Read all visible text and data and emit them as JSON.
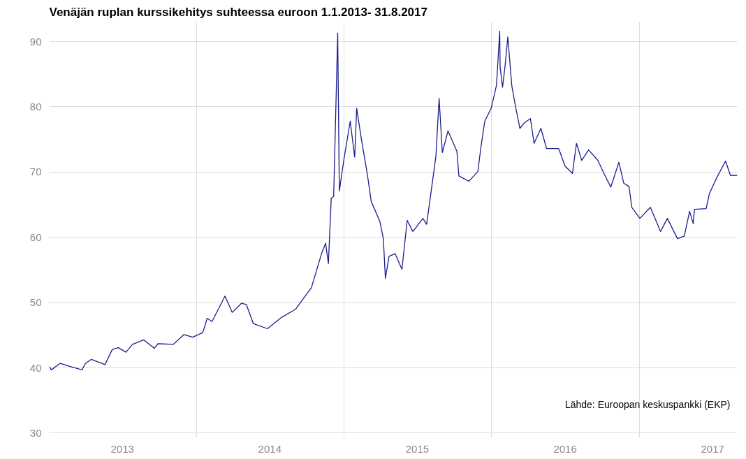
{
  "chart_data": {
    "type": "line",
    "title": "Venäjän ruplan kurssikehitys suhteessa euroon 1.1.2013- 31.8.2017",
    "x": [
      "2013-01-01",
      "2013-01-06",
      "2013-01-28",
      "2013-02-22",
      "2013-03-23",
      "2013-04-01",
      "2013-04-15",
      "2013-05-19",
      "2013-06-06",
      "2013-06-21",
      "2013-07-10",
      "2013-07-26",
      "2013-08-23",
      "2013-09-18",
      "2013-09-27",
      "2013-11-04",
      "2013-11-30",
      "2013-12-22",
      "2014-01-16",
      "2014-01-27",
      "2014-02-08",
      "2014-03-12",
      "2014-03-30",
      "2014-04-22",
      "2014-05-04",
      "2014-05-21",
      "2014-06-25",
      "2014-07-29",
      "2014-09-03",
      "2014-10-12",
      "2014-11-06",
      "2014-11-16",
      "2014-11-23",
      "2014-11-30",
      "2014-12-06",
      "2014-12-16",
      "2014-12-20",
      "2014-12-31",
      "2015-01-16",
      "2015-01-27",
      "2015-02-01",
      "2015-02-13",
      "2015-02-28",
      "2015-03-09",
      "2015-03-30",
      "2015-04-08",
      "2015-04-13",
      "2015-04-22",
      "2015-05-07",
      "2015-05-24",
      "2015-06-06",
      "2015-06-20",
      "2015-07-15",
      "2015-07-24",
      "2015-08-02",
      "2015-08-16",
      "2015-08-24",
      "2015-09-01",
      "2015-09-15",
      "2015-10-07",
      "2015-10-12",
      "2015-11-06",
      "2015-11-28",
      "2015-12-05",
      "2015-12-15",
      "2015-12-31",
      "2016-01-13",
      "2016-01-21",
      "2016-01-22",
      "2016-01-28",
      "2016-02-03",
      "2016-02-10",
      "2016-02-20",
      "2016-02-29",
      "2016-03-11",
      "2016-03-21",
      "2016-04-06",
      "2016-04-15",
      "2016-05-02",
      "2016-05-16",
      "2016-06-15",
      "2016-07-01",
      "2016-07-19",
      "2016-07-29",
      "2016-08-11",
      "2016-08-28",
      "2016-09-20",
      "2016-10-05",
      "2016-10-22",
      "2016-11-11",
      "2016-11-23",
      "2016-12-06",
      "2016-12-13",
      "2017-01-02",
      "2017-01-28",
      "2017-02-22",
      "2017-03-11",
      "2017-04-05",
      "2017-04-22",
      "2017-05-05",
      "2017-05-14",
      "2017-05-17",
      "2017-06-15",
      "2017-06-23",
      "2017-07-10",
      "2017-08-02",
      "2017-08-14",
      "2017-08-31"
    ],
    "series": [
      {
        "color": "#1c1c8c",
        "values": [
          40.2,
          39.7,
          40.7,
          40.2,
          39.7,
          40.7,
          41.3,
          40.5,
          42.8,
          43.1,
          42.4,
          43.6,
          44.3,
          43.0,
          43.7,
          43.6,
          45.1,
          44.7,
          45.4,
          47.6,
          47.1,
          51.0,
          48.5,
          49.9,
          49.7,
          46.8,
          46.0,
          47.7,
          49.0,
          52.3,
          57.5,
          59.1,
          56.0,
          66.0,
          66.3,
          91.3,
          67.1,
          71.8,
          77.8,
          72.3,
          79.8,
          74.9,
          69.4,
          65.5,
          62.5,
          59.8,
          53.7,
          57.1,
          57.5,
          55.1,
          62.6,
          60.9,
          62.9,
          62.0,
          66.0,
          72.4,
          81.3,
          73.0,
          76.3,
          73.2,
          69.4,
          68.6,
          70.1,
          73.6,
          77.8,
          79.8,
          83.3,
          91.6,
          86.1,
          83.0,
          86.1,
          90.7,
          83.2,
          80.1,
          76.7,
          77.5,
          78.2,
          74.4,
          76.7,
          73.6,
          73.6,
          70.9,
          69.8,
          74.4,
          71.8,
          73.4,
          71.8,
          69.8,
          67.7,
          71.5,
          68.3,
          67.8,
          64.6,
          62.9,
          64.6,
          60.9,
          62.9,
          59.8,
          60.2,
          64.0,
          62.1,
          64.3,
          64.4,
          66.7,
          69.0,
          71.7,
          69.5,
          69.5
        ]
      }
    ],
    "xlim": [
      "2013-01-01",
      "2017-08-31"
    ],
    "xticks": [
      {
        "value": "2013-07-01",
        "label": "2013"
      },
      {
        "value": "2014-01-01",
        "label": null
      },
      {
        "value": "2014-07-01",
        "label": "2014"
      },
      {
        "value": "2015-01-01",
        "label": null
      },
      {
        "value": "2015-07-01",
        "label": "2015"
      },
      {
        "value": "2016-01-01",
        "label": null
      },
      {
        "value": "2016-07-01",
        "label": "2016"
      },
      {
        "value": "2017-01-01",
        "label": null
      },
      {
        "value": "2017-07-01",
        "label": "2017"
      }
    ],
    "ylim": [
      29.3,
      93
    ],
    "yticks": [
      30,
      40,
      50,
      60,
      70,
      80,
      90
    ],
    "grid": true,
    "line_style": "solid",
    "annotations": [
      "Lähde: Euroopan keskuspankki (EKP)"
    ]
  }
}
